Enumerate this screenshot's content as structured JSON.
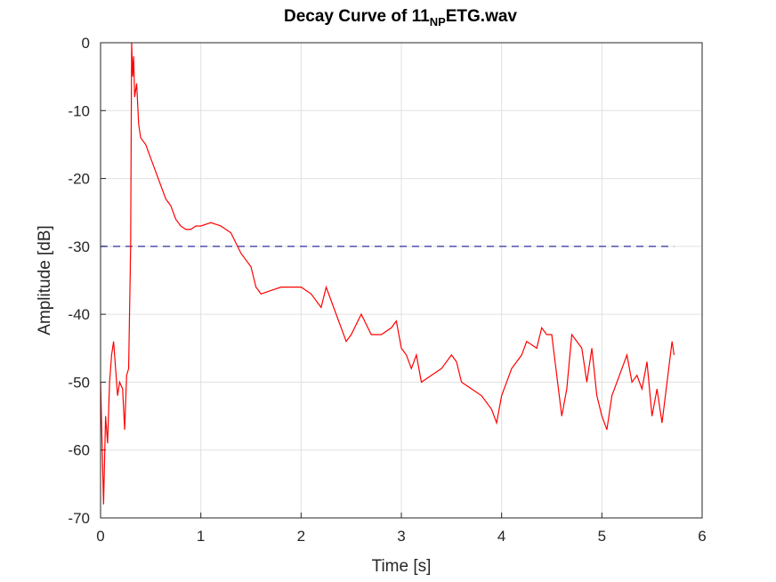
{
  "chart_data": {
    "type": "line",
    "title": [
      "Decay Curve of 11",
      "NP",
      "ETG.wav"
    ],
    "xlabel": "Time [s]",
    "ylabel": "Amplitude [dB]",
    "xlim": [
      0,
      6
    ],
    "ylim": [
      -70,
      0
    ],
    "xticks": [
      0,
      1,
      2,
      3,
      4,
      5,
      6
    ],
    "yticks": [
      -70,
      -60,
      -50,
      -40,
      -30,
      -20,
      -10,
      0
    ],
    "grid": true,
    "hline": {
      "value": -30,
      "x": [
        0,
        5.72
      ],
      "color": "#00008b",
      "style": "dashed"
    },
    "series": [
      {
        "color": "#ff0000",
        "x": [
          0.0,
          0.02,
          0.03,
          0.05,
          0.07,
          0.09,
          0.11,
          0.13,
          0.15,
          0.17,
          0.19,
          0.22,
          0.24,
          0.26,
          0.28,
          0.3,
          0.31,
          0.32,
          0.33,
          0.34,
          0.36,
          0.38,
          0.4,
          0.45,
          0.5,
          0.55,
          0.6,
          0.65,
          0.7,
          0.75,
          0.8,
          0.85,
          0.9,
          0.95,
          1.0,
          1.1,
          1.2,
          1.3,
          1.4,
          1.5,
          1.55,
          1.6,
          1.7,
          1.8,
          1.9,
          2.0,
          2.1,
          2.2,
          2.25,
          2.3,
          2.4,
          2.45,
          2.5,
          2.6,
          2.7,
          2.8,
          2.9,
          2.95,
          3.0,
          3.05,
          3.1,
          3.15,
          3.2,
          3.3,
          3.4,
          3.5,
          3.55,
          3.6,
          3.7,
          3.8,
          3.9,
          3.95,
          4.0,
          4.1,
          4.2,
          4.25,
          4.35,
          4.4,
          4.45,
          4.5,
          4.55,
          4.6,
          4.65,
          4.7,
          4.8,
          4.85,
          4.9,
          4.95,
          5.0,
          5.05,
          5.1,
          5.15,
          5.2,
          5.25,
          5.3,
          5.35,
          5.4,
          5.45,
          5.5,
          5.55,
          5.6,
          5.65,
          5.7,
          5.72
        ],
        "values": [
          -50,
          -62,
          -68,
          -55,
          -59,
          -50,
          -46,
          -44,
          -48,
          -52,
          -50,
          -51,
          -57,
          -49,
          -48,
          -30,
          0,
          -5,
          -2,
          -8,
          -6,
          -12,
          -14,
          -15,
          -17,
          -19,
          -21,
          -23,
          -24,
          -26,
          -27,
          -27.5,
          -27.5,
          -27,
          -27,
          -26.5,
          -27,
          -28,
          -31,
          -33,
          -36,
          -37,
          -36.5,
          -36,
          -36,
          -36,
          -37,
          -39,
          -36,
          -38,
          -42,
          -44,
          -43,
          -40,
          -43,
          -43,
          -42,
          -41,
          -45,
          -46,
          -48,
          -46,
          -50,
          -49,
          -48,
          -46,
          -47,
          -50,
          -51,
          -52,
          -54,
          -56,
          -52,
          -48,
          -46,
          -44,
          -45,
          -42,
          -43,
          -43,
          -49,
          -55,
          -51,
          -43,
          -45,
          -50,
          -45,
          -52,
          -55,
          -57,
          -52,
          -50,
          -48,
          -46,
          -50,
          -49,
          -51,
          -47,
          -55,
          -51,
          -56,
          -50,
          -44,
          -46
        ]
      }
    ]
  }
}
